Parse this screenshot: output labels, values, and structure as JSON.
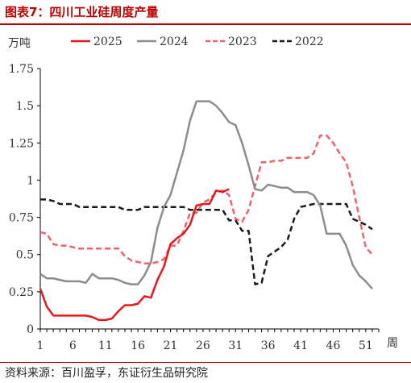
{
  "figure": {
    "title": "图表7：四川工业硅周度产量",
    "source": "资料来源：百川盈孚，东证衍生品研究院"
  },
  "colors": {
    "accent": "#c00000",
    "axis": "#000000"
  },
  "chart_data": {
    "type": "line",
    "title": "",
    "ylabel": "万吨",
    "xlabel": "周",
    "ylim": [
      0,
      1.75
    ],
    "xlim": [
      1,
      53
    ],
    "y_ticks": [
      "0",
      "0.25",
      "0.5",
      "0.75",
      "1",
      "1.25",
      "1.5",
      "1.75"
    ],
    "x_ticks": [
      "1",
      "6",
      "11",
      "16",
      "21",
      "26",
      "31",
      "36",
      "41",
      "46",
      "51"
    ],
    "grid": false,
    "legend_position": "top",
    "series": [
      {
        "name": "2025",
        "color": "#e31a1c",
        "style": "solid",
        "x": [
          1,
          2,
          3,
          4,
          5,
          6,
          7,
          8,
          9,
          10,
          11,
          12,
          13,
          14,
          15,
          16,
          17,
          18,
          19,
          20,
          21,
          22,
          23,
          24,
          25,
          26,
          27,
          28,
          29,
          30
        ],
        "y": [
          0.27,
          0.15,
          0.09,
          0.09,
          0.09,
          0.09,
          0.09,
          0.09,
          0.08,
          0.06,
          0.06,
          0.07,
          0.12,
          0.16,
          0.16,
          0.17,
          0.22,
          0.21,
          0.33,
          0.42,
          0.57,
          0.61,
          0.64,
          0.7,
          0.83,
          0.84,
          0.84,
          0.93,
          0.92,
          0.94
        ]
      },
      {
        "name": "2024",
        "color": "#8c8c8c",
        "style": "solid",
        "x": [
          1,
          2,
          3,
          4,
          5,
          6,
          7,
          8,
          9,
          10,
          11,
          12,
          13,
          14,
          15,
          16,
          17,
          18,
          19,
          20,
          21,
          22,
          23,
          24,
          25,
          26,
          27,
          28,
          29,
          30,
          31,
          32,
          33,
          34,
          35,
          36,
          37,
          38,
          39,
          40,
          41,
          42,
          43,
          44,
          45,
          46,
          47,
          48,
          49,
          50,
          51,
          52
        ],
        "y": [
          0.37,
          0.34,
          0.34,
          0.33,
          0.32,
          0.32,
          0.32,
          0.31,
          0.37,
          0.34,
          0.34,
          0.34,
          0.33,
          0.31,
          0.3,
          0.3,
          0.36,
          0.45,
          0.68,
          0.82,
          0.9,
          1.05,
          1.2,
          1.4,
          1.53,
          1.53,
          1.53,
          1.5,
          1.45,
          1.39,
          1.37,
          1.25,
          1.1,
          0.94,
          0.93,
          0.97,
          0.96,
          0.95,
          0.95,
          0.92,
          0.92,
          0.92,
          0.9,
          0.83,
          0.64,
          0.64,
          0.64,
          0.56,
          0.43,
          0.36,
          0.32,
          0.27
        ]
      },
      {
        "name": "2023",
        "color": "#f2606c",
        "style": "dashed",
        "x": [
          1,
          2,
          3,
          4,
          5,
          6,
          7,
          8,
          9,
          10,
          11,
          12,
          13,
          14,
          15,
          16,
          17,
          18,
          19,
          20,
          21,
          22,
          23,
          24,
          25,
          26,
          27,
          28,
          29,
          30,
          31,
          32,
          33,
          34,
          35,
          36,
          37,
          38,
          39,
          40,
          41,
          42,
          43,
          44,
          45,
          46,
          47,
          48,
          49,
          50,
          51,
          52
        ],
        "y": [
          0.65,
          0.64,
          0.57,
          0.56,
          0.56,
          0.55,
          0.54,
          0.54,
          0.54,
          0.54,
          0.54,
          0.54,
          0.54,
          0.49,
          0.46,
          0.45,
          0.44,
          0.44,
          0.45,
          0.47,
          0.56,
          0.56,
          0.66,
          0.78,
          0.78,
          0.85,
          0.87,
          0.92,
          0.93,
          0.9,
          0.74,
          0.72,
          0.8,
          0.96,
          1.12,
          1.12,
          1.13,
          1.13,
          1.15,
          1.15,
          1.15,
          1.15,
          1.18,
          1.3,
          1.3,
          1.25,
          1.18,
          1.12,
          0.96,
          0.75,
          0.55,
          0.5
        ]
      },
      {
        "name": "2022",
        "color": "#1a1a1a",
        "style": "dashed",
        "x": [
          1,
          2,
          3,
          4,
          5,
          6,
          7,
          8,
          9,
          10,
          11,
          12,
          13,
          14,
          15,
          16,
          17,
          18,
          19,
          20,
          21,
          22,
          23,
          24,
          25,
          26,
          27,
          28,
          29,
          30,
          31,
          32,
          33,
          34,
          35,
          36,
          37,
          38,
          39,
          40,
          41,
          42,
          43,
          44,
          45,
          46,
          47,
          48,
          49,
          50,
          51,
          52
        ],
        "y": [
          0.87,
          0.87,
          0.86,
          0.84,
          0.84,
          0.84,
          0.82,
          0.82,
          0.82,
          0.82,
          0.82,
          0.82,
          0.82,
          0.8,
          0.8,
          0.8,
          0.82,
          0.82,
          0.82,
          0.82,
          0.82,
          0.82,
          0.82,
          0.8,
          0.8,
          0.8,
          0.8,
          0.8,
          0.8,
          0.73,
          0.73,
          0.66,
          0.66,
          0.3,
          0.31,
          0.49,
          0.52,
          0.55,
          0.6,
          0.74,
          0.82,
          0.83,
          0.84,
          0.84,
          0.84,
          0.84,
          0.84,
          0.84,
          0.74,
          0.72,
          0.7,
          0.67
        ]
      }
    ]
  }
}
